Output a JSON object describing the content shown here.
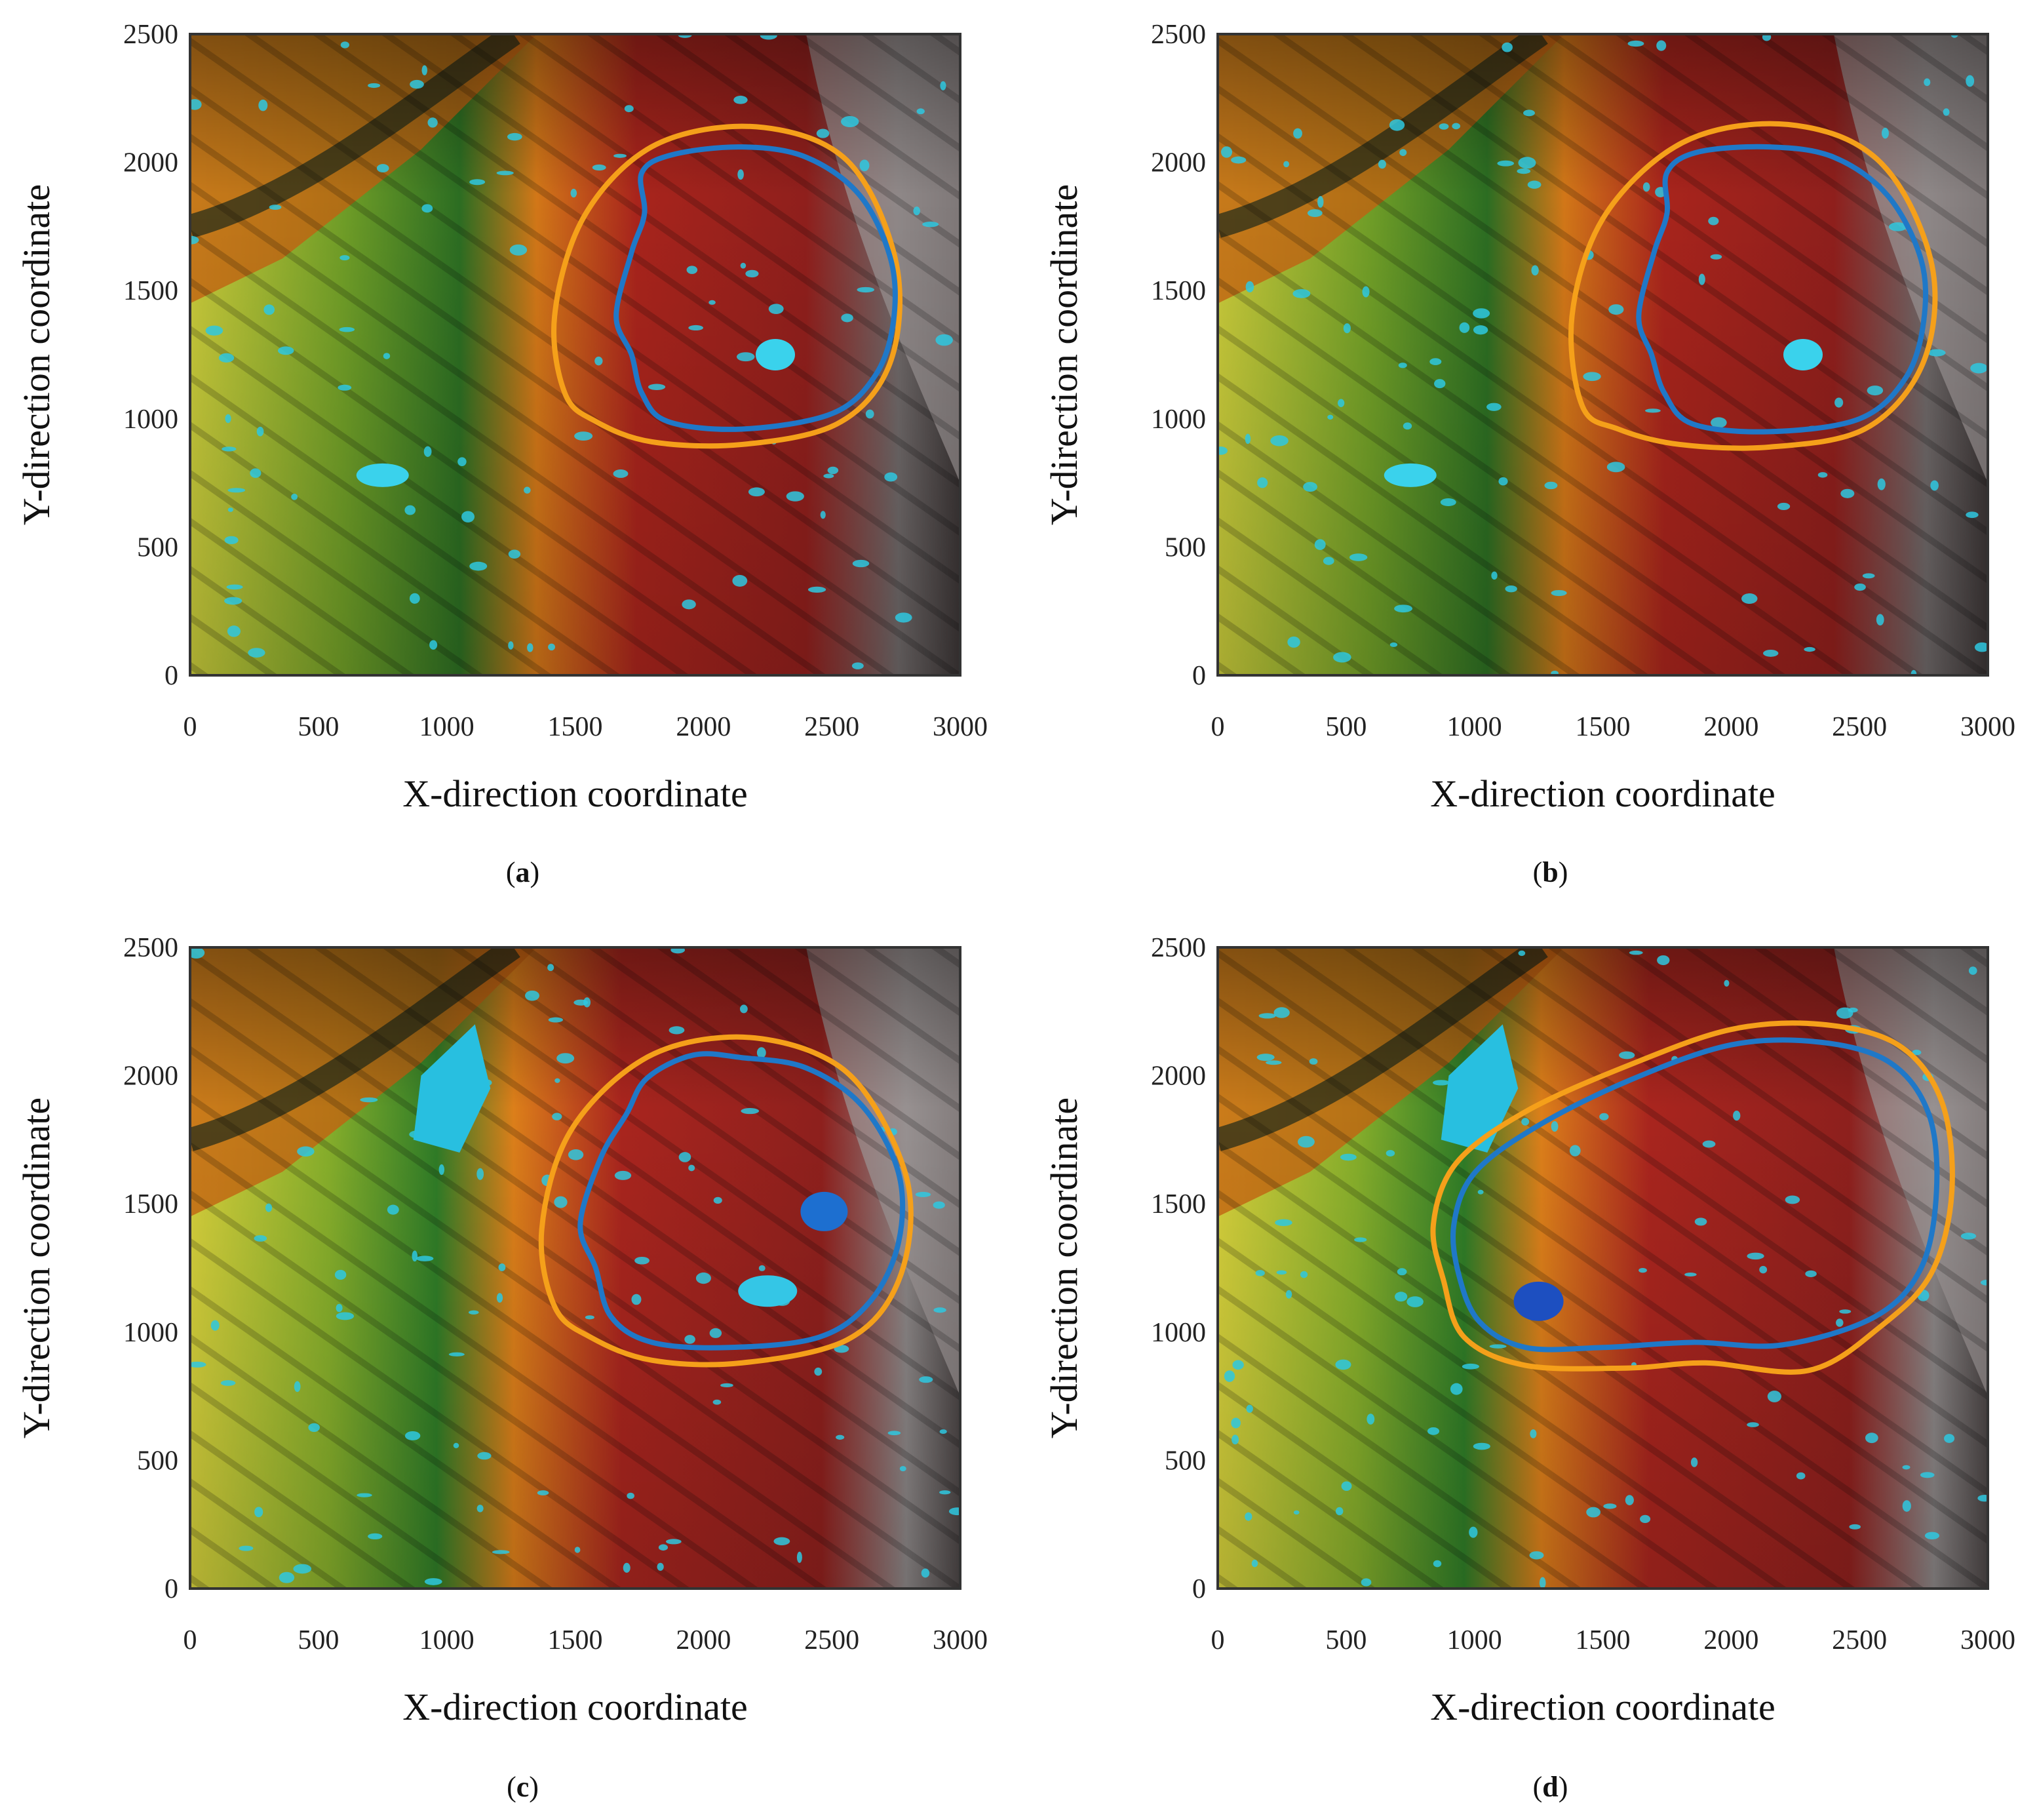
{
  "chart_data": [
    {
      "type": "heatmap",
      "label": "(a)",
      "label_letter": "a",
      "xlabel": "X-direction coordinate",
      "ylabel": "Y-direction coordinate",
      "xlim": [
        0,
        3000
      ],
      "ylim": [
        0,
        2500
      ],
      "xticks": [
        0,
        500,
        1000,
        1500,
        2000,
        2500,
        3000
      ],
      "yticks": [
        0,
        500,
        1000,
        1500,
        2000,
        2500
      ],
      "outer_contour": [
        [
          1460,
          1100
        ],
        [
          1420,
          1400
        ],
        [
          1530,
          1780
        ],
        [
          1780,
          2050
        ],
        [
          2120,
          2140
        ],
        [
          2450,
          2080
        ],
        [
          2640,
          1900
        ],
        [
          2760,
          1550
        ],
        [
          2720,
          1200
        ],
        [
          2520,
          980
        ],
        [
          2150,
          900
        ],
        [
          1800,
          910
        ],
        [
          1580,
          990
        ]
      ],
      "inner_contour": [
        [
          1720,
          1250
        ],
        [
          1660,
          1400
        ],
        [
          1720,
          1650
        ],
        [
          1770,
          1800
        ],
        [
          1760,
          1960
        ],
        [
          1880,
          2030
        ],
        [
          2150,
          2060
        ],
        [
          2400,
          2020
        ],
        [
          2610,
          1870
        ],
        [
          2730,
          1620
        ],
        [
          2740,
          1380
        ],
        [
          2670,
          1170
        ],
        [
          2500,
          1020
        ],
        [
          2150,
          960
        ],
        [
          1860,
          990
        ],
        [
          1760,
          1100
        ]
      ]
    },
    {
      "type": "heatmap",
      "label": "(b)",
      "label_letter": "b",
      "xlabel": "X-direction coordinate",
      "ylabel": "Y-direction coordinate",
      "xlim": [
        0,
        3000
      ],
      "ylim": [
        0,
        2500
      ],
      "xticks": [
        0,
        500,
        1000,
        1500,
        2000,
        2500,
        3000
      ],
      "yticks": [
        0,
        500,
        1000,
        1500,
        2000,
        2500
      ],
      "outer_contour": [
        [
          1420,
          1050
        ],
        [
          1380,
          1400
        ],
        [
          1500,
          1780
        ],
        [
          1780,
          2060
        ],
        [
          2120,
          2150
        ],
        [
          2450,
          2090
        ],
        [
          2660,
          1900
        ],
        [
          2790,
          1550
        ],
        [
          2740,
          1200
        ],
        [
          2520,
          960
        ],
        [
          2150,
          890
        ],
        [
          1800,
          900
        ],
        [
          1560,
          960
        ]
      ],
      "inner_contour": [
        [
          1690,
          1250
        ],
        [
          1640,
          1400
        ],
        [
          1700,
          1650
        ],
        [
          1750,
          1800
        ],
        [
          1750,
          1960
        ],
        [
          1870,
          2040
        ],
        [
          2150,
          2060
        ],
        [
          2400,
          2020
        ],
        [
          2610,
          1870
        ],
        [
          2740,
          1620
        ],
        [
          2750,
          1380
        ],
        [
          2680,
          1160
        ],
        [
          2500,
          1000
        ],
        [
          2150,
          950
        ],
        [
          1850,
          980
        ],
        [
          1740,
          1100
        ]
      ]
    },
    {
      "type": "heatmap",
      "label": "(c)",
      "label_letter": "c",
      "xlabel": "X-direction coordinate",
      "ylabel": "Y-direction coordinate",
      "xlim": [
        0,
        3000
      ],
      "ylim": [
        0,
        2500
      ],
      "xticks": [
        0,
        500,
        1000,
        1500,
        2000,
        2500,
        3000
      ],
      "yticks": [
        0,
        500,
        1000,
        1500,
        2000,
        2500
      ],
      "outer_contour": [
        [
          1420,
          1100
        ],
        [
          1370,
          1400
        ],
        [
          1480,
          1780
        ],
        [
          1760,
          2060
        ],
        [
          2100,
          2150
        ],
        [
          2430,
          2090
        ],
        [
          2640,
          1920
        ],
        [
          2800,
          1560
        ],
        [
          2760,
          1200
        ],
        [
          2560,
          970
        ],
        [
          2150,
          880
        ],
        [
          1800,
          890
        ],
        [
          1560,
          980
        ]
      ],
      "inner_contour": [
        [
          1580,
          1250
        ],
        [
          1520,
          1420
        ],
        [
          1600,
          1680
        ],
        [
          1700,
          1850
        ],
        [
          1780,
          1990
        ],
        [
          1960,
          2080
        ],
        [
          2150,
          2070
        ],
        [
          2400,
          2030
        ],
        [
          2620,
          1880
        ],
        [
          2760,
          1620
        ],
        [
          2760,
          1350
        ],
        [
          2650,
          1120
        ],
        [
          2450,
          980
        ],
        [
          2100,
          940
        ],
        [
          1800,
          960
        ],
        [
          1640,
          1060
        ]
      ]
    },
    {
      "type": "heatmap",
      "label": "(d)",
      "label_letter": "d",
      "xlabel": "X-direction coordinate",
      "ylabel": "Y-direction coordinate",
      "xlim": [
        0,
        3000
      ],
      "ylim": [
        0,
        2500
      ],
      "xticks": [
        0,
        500,
        1000,
        1500,
        2000,
        2500,
        3000
      ],
      "yticks": [
        0,
        500,
        1000,
        1500,
        2000,
        2500
      ],
      "outer_contour": [
        [
          880,
          1200
        ],
        [
          840,
          1420
        ],
        [
          930,
          1660
        ],
        [
          1200,
          1860
        ],
        [
          1600,
          2040
        ],
        [
          2000,
          2180
        ],
        [
          2350,
          2200
        ],
        [
          2650,
          2120
        ],
        [
          2820,
          1900
        ],
        [
          2860,
          1550
        ],
        [
          2780,
          1230
        ],
        [
          2580,
          1020
        ],
        [
          2300,
          850
        ],
        [
          1900,
          880
        ],
        [
          1600,
          860
        ],
        [
          1200,
          870
        ],
        [
          960,
          980
        ]
      ],
      "inner_contour": [
        [
          940,
          1220
        ],
        [
          920,
          1420
        ],
        [
          1000,
          1620
        ],
        [
          1240,
          1800
        ],
        [
          1600,
          1980
        ],
        [
          2000,
          2120
        ],
        [
          2350,
          2130
        ],
        [
          2620,
          2050
        ],
        [
          2770,
          1850
        ],
        [
          2800,
          1550
        ],
        [
          2740,
          1250
        ],
        [
          2560,
          1060
        ],
        [
          2200,
          950
        ],
        [
          1850,
          960
        ],
        [
          1500,
          940
        ],
        [
          1200,
          940
        ],
        [
          1020,
          1040
        ]
      ]
    }
  ]
}
